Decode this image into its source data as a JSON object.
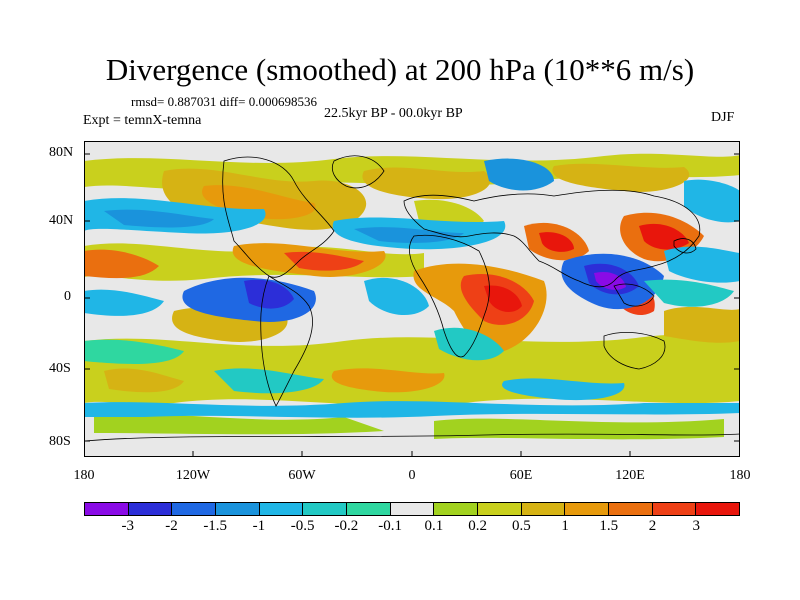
{
  "title": "Divergence (smoothed) at 200 hPa (10**6 m/s)",
  "stats": "rmsd= 0.887031 diff= 0.000698536",
  "experiment": "Expt = temnX-temna",
  "period": "22.5kyr BP - 00.0kyr BP",
  "season": "DJF",
  "y_ticks": [
    "80N",
    "40N",
    "0",
    "40S",
    "80S"
  ],
  "x_ticks": [
    "180",
    "120W",
    "60W",
    "0",
    "60E",
    "120E",
    "180"
  ],
  "colorbar": {
    "colors": [
      "#8a0be6",
      "#2c2ed8",
      "#1f68e3",
      "#1a93dc",
      "#20b6e6",
      "#22c9c4",
      "#2fd7a0",
      "#e8e8e8",
      "#a2d21f",
      "#c9d01d",
      "#d6b314",
      "#e79a0c",
      "#ea6f0f",
      "#ee4016",
      "#e8160c"
    ],
    "labels": [
      "-3",
      "-2",
      "-1.5",
      "-1",
      "-0.5",
      "-0.2",
      "-0.1",
      "0.1",
      "0.2",
      "0.5",
      "1",
      "1.5",
      "2",
      "3"
    ]
  }
}
